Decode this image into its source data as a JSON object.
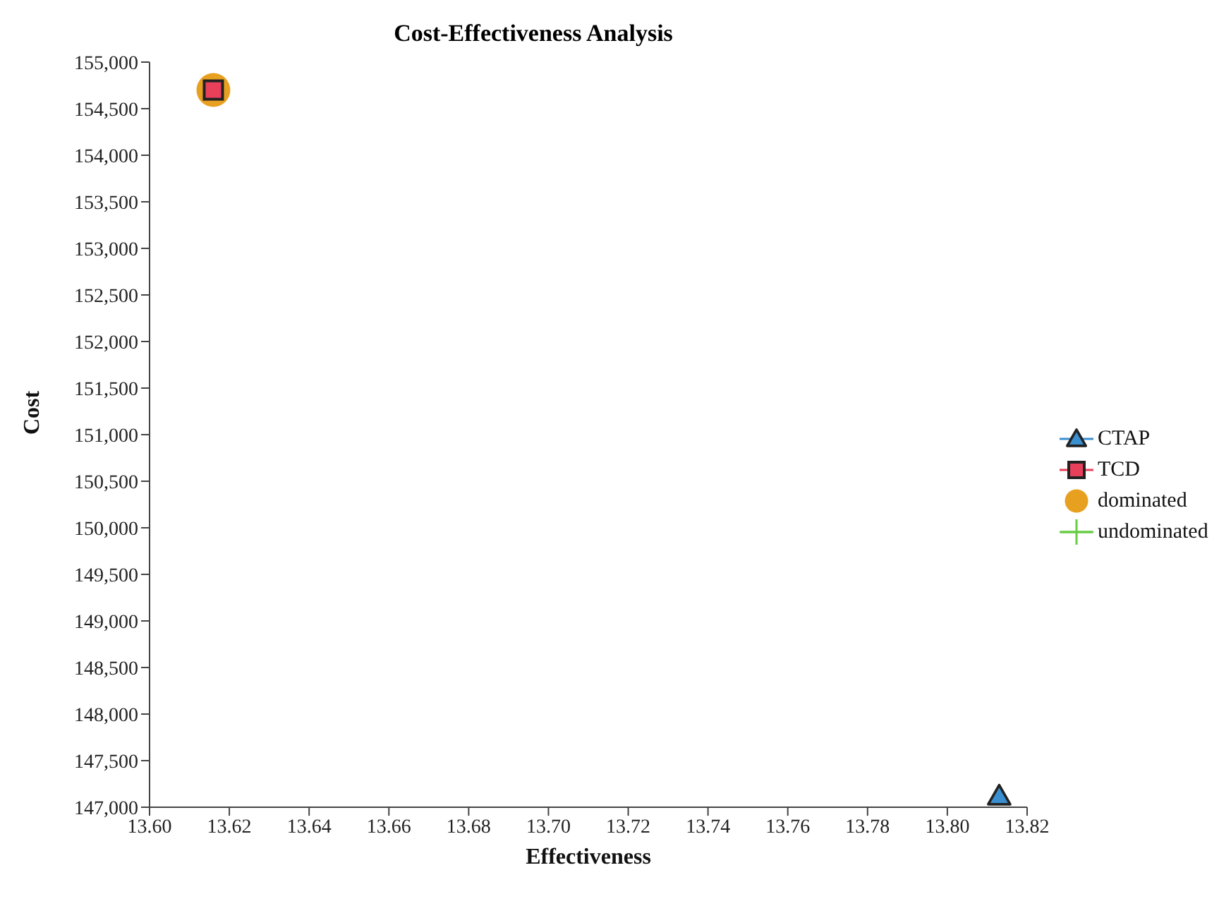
{
  "chart_data": {
    "type": "scatter",
    "title": "Cost-Effectiveness Analysis",
    "xlabel": "Effectiveness",
    "ylabel": "Cost",
    "xlim": [
      13.6,
      13.82
    ],
    "xticks": [
      {
        "value": 13.6,
        "label": "13.60"
      },
      {
        "value": 13.62,
        "label": "13.62"
      },
      {
        "value": 13.64,
        "label": "13.64"
      },
      {
        "value": 13.66,
        "label": "13.66"
      },
      {
        "value": 13.68,
        "label": "13.68"
      },
      {
        "value": 13.7,
        "label": "13.70"
      },
      {
        "value": 13.72,
        "label": "13.72"
      },
      {
        "value": 13.74,
        "label": "13.74"
      },
      {
        "value": 13.76,
        "label": "13.76"
      },
      {
        "value": 13.78,
        "label": "13.78"
      },
      {
        "value": 13.8,
        "label": "13.80"
      },
      {
        "value": 13.82,
        "label": "13.82"
      }
    ],
    "ylim": [
      147000,
      155000
    ],
    "yticks": [
      {
        "value": 147000,
        "label": "147,000"
      },
      {
        "value": 147500,
        "label": "147,500"
      },
      {
        "value": 148000,
        "label": "148,000"
      },
      {
        "value": 148500,
        "label": "148,500"
      },
      {
        "value": 149000,
        "label": "149,000"
      },
      {
        "value": 149500,
        "label": "149,500"
      },
      {
        "value": 150000,
        "label": "150,000"
      },
      {
        "value": 150500,
        "label": "150,500"
      },
      {
        "value": 151000,
        "label": "151,000"
      },
      {
        "value": 151500,
        "label": "151,500"
      },
      {
        "value": 152000,
        "label": "152,000"
      },
      {
        "value": 152500,
        "label": "152,500"
      },
      {
        "value": 153000,
        "label": "153,000"
      },
      {
        "value": 153500,
        "label": "153,500"
      },
      {
        "value": 154000,
        "label": "154,000"
      },
      {
        "value": 154500,
        "label": "154,500"
      },
      {
        "value": 155000,
        "label": "155,000"
      }
    ],
    "x": [
      13.616,
      13.813
    ],
    "grid": false,
    "legend": "right",
    "series": [
      {
        "name": "CTAP",
        "color": "#3a8fd0",
        "marker": "triangle",
        "line_style": "solid",
        "values": [
          null,
          147120
        ]
      },
      {
        "name": "TCD",
        "color": "#e8405a",
        "marker": "square",
        "line_style": "solid",
        "values": [
          154700,
          null
        ]
      },
      {
        "name": "dominated",
        "color": "#e8a020",
        "marker": "circle",
        "values": [
          154700,
          null
        ]
      },
      {
        "name": "undominated",
        "color": "#66cc44",
        "marker": "cross",
        "line_style": "solid",
        "values": [
          null,
          null
        ]
      }
    ]
  }
}
